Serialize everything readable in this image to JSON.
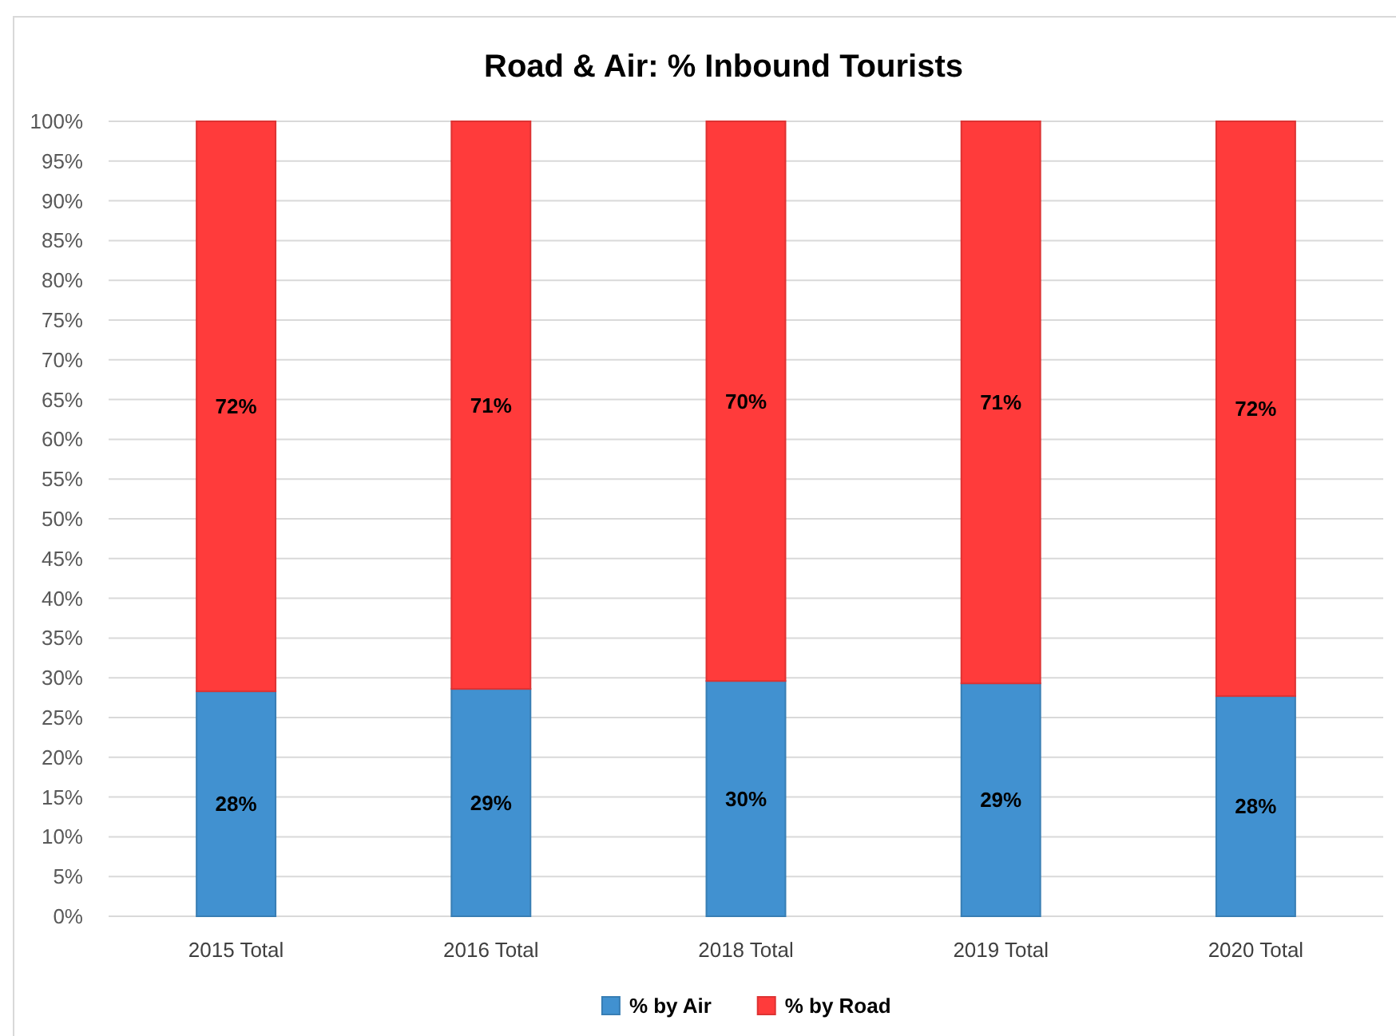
{
  "chart_data": {
    "type": "bar",
    "title": "Road & Air: % Inbound Tourists",
    "categories": [
      "2015 Total",
      "2016 Total",
      "2018 Total",
      "2019 Total",
      "2020 Total"
    ],
    "stacked": true,
    "series": [
      {
        "name": "% by Air",
        "color": "#4191d0",
        "values": [
          28.3,
          28.6,
          29.6,
          29.3,
          27.7
        ],
        "value_labels": [
          "28%",
          "29%",
          "30%",
          "29%",
          "28%"
        ]
      },
      {
        "name": "% by Road",
        "color": "#ff3b3b",
        "values": [
          71.7,
          71.4,
          70.4,
          70.7,
          72.3
        ],
        "value_labels": [
          "72%",
          "71%",
          "70%",
          "71%",
          "72%"
        ]
      }
    ],
    "ylim": [
      0,
      100
    ],
    "yticks": [
      {
        "value": 0,
        "label": "0%"
      },
      {
        "value": 5,
        "label": "5%"
      },
      {
        "value": 10,
        "label": "10%"
      },
      {
        "value": 15,
        "label": "15%"
      },
      {
        "value": 20,
        "label": "20%"
      },
      {
        "value": 25,
        "label": "25%"
      },
      {
        "value": 30,
        "label": "30%"
      },
      {
        "value": 35,
        "label": "35%"
      },
      {
        "value": 40,
        "label": "40%"
      },
      {
        "value": 45,
        "label": "45%"
      },
      {
        "value": 50,
        "label": "50%"
      },
      {
        "value": 55,
        "label": "55%"
      },
      {
        "value": 60,
        "label": "60%"
      },
      {
        "value": 65,
        "label": "65%"
      },
      {
        "value": 70,
        "label": "70%"
      },
      {
        "value": 75,
        "label": "75%"
      },
      {
        "value": 80,
        "label": "80%"
      },
      {
        "value": 85,
        "label": "85%"
      },
      {
        "value": 90,
        "label": "90%"
      },
      {
        "value": 95,
        "label": "95%"
      },
      {
        "value": 100,
        "label": "100%"
      }
    ],
    "grid": "y",
    "legend": "bottom"
  }
}
